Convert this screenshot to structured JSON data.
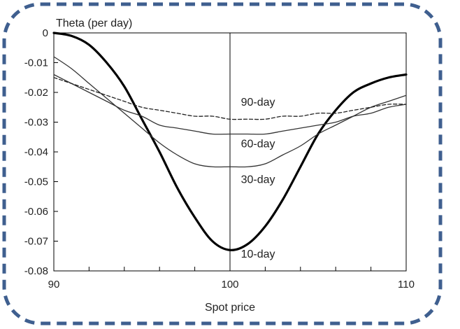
{
  "chart_data": {
    "type": "line",
    "title": "",
    "ylabel": "Theta (per day)",
    "xlabel": "Spot price",
    "xlim": [
      90,
      110
    ],
    "ylim": [
      -0.08,
      0
    ],
    "xticks": [
      90,
      100,
      110
    ],
    "yticks": [
      0,
      -0.01,
      -0.02,
      -0.03,
      -0.04,
      -0.05,
      -0.06,
      -0.07,
      -0.08
    ],
    "ytick_labels": [
      "0",
      "-0.01",
      "-0.02",
      "-0.03",
      "-0.04",
      "-0.05",
      "-0.06",
      "-0.07",
      "-0.08"
    ],
    "vertical_reference_line_x": 100,
    "grid": false,
    "series": [
      {
        "name": "10-day",
        "style": "solid-thick",
        "color": "#000000",
        "x": [
          90,
          91,
          92,
          93,
          94,
          95,
          96,
          97,
          98,
          99,
          100,
          101,
          102,
          103,
          104,
          105,
          106,
          107,
          108,
          109,
          110
        ],
        "y": [
          0,
          -0.001,
          -0.004,
          -0.01,
          -0.018,
          -0.029,
          -0.04,
          -0.052,
          -0.062,
          -0.07,
          -0.073,
          -0.071,
          -0.065,
          -0.056,
          -0.045,
          -0.034,
          -0.026,
          -0.02,
          -0.017,
          -0.015,
          -0.014
        ]
      },
      {
        "name": "30-day",
        "style": "solid",
        "color": "#333333",
        "x": [
          90,
          91,
          92,
          93,
          94,
          95,
          96,
          97,
          98,
          99,
          100,
          101,
          102,
          103,
          104,
          105,
          106,
          107,
          108,
          109,
          110
        ],
        "y": [
          -0.008,
          -0.012,
          -0.017,
          -0.022,
          -0.027,
          -0.032,
          -0.037,
          -0.041,
          -0.044,
          -0.045,
          -0.045,
          -0.045,
          -0.044,
          -0.041,
          -0.038,
          -0.034,
          -0.031,
          -0.028,
          -0.025,
          -0.023,
          -0.021
        ]
      },
      {
        "name": "60-day",
        "style": "solid",
        "color": "#333333",
        "x": [
          90,
          91,
          92,
          93,
          94,
          95,
          96,
          97,
          98,
          99,
          100,
          101,
          102,
          103,
          104,
          105,
          106,
          107,
          108,
          109,
          110
        ],
        "y": [
          -0.014,
          -0.017,
          -0.02,
          -0.023,
          -0.026,
          -0.028,
          -0.031,
          -0.032,
          -0.033,
          -0.034,
          -0.034,
          -0.034,
          -0.034,
          -0.033,
          -0.032,
          -0.031,
          -0.03,
          -0.028,
          -0.027,
          -0.025,
          -0.024
        ]
      },
      {
        "name": "90-day",
        "style": "dashed",
        "color": "#222222",
        "x": [
          90,
          91,
          92,
          93,
          94,
          95,
          96,
          97,
          98,
          99,
          100,
          101,
          102,
          103,
          104,
          105,
          106,
          107,
          108,
          109,
          110
        ],
        "y": [
          -0.015,
          -0.017,
          -0.019,
          -0.021,
          -0.023,
          -0.025,
          -0.026,
          -0.027,
          -0.028,
          -0.028,
          -0.029,
          -0.029,
          -0.029,
          -0.028,
          -0.028,
          -0.027,
          -0.027,
          -0.026,
          -0.025,
          -0.024,
          -0.024
        ]
      }
    ],
    "series_labels": [
      {
        "text": "90-day",
        "x": 100.5,
        "y": -0.0245
      },
      {
        "text": "60-day",
        "x": 100.5,
        "y": -0.0385
      },
      {
        "text": "30-day",
        "x": 100.5,
        "y": -0.0505
      },
      {
        "text": "10-day",
        "x": 100.5,
        "y": -0.0755
      }
    ]
  },
  "frame": {
    "border_color": "#3f5f8f"
  }
}
